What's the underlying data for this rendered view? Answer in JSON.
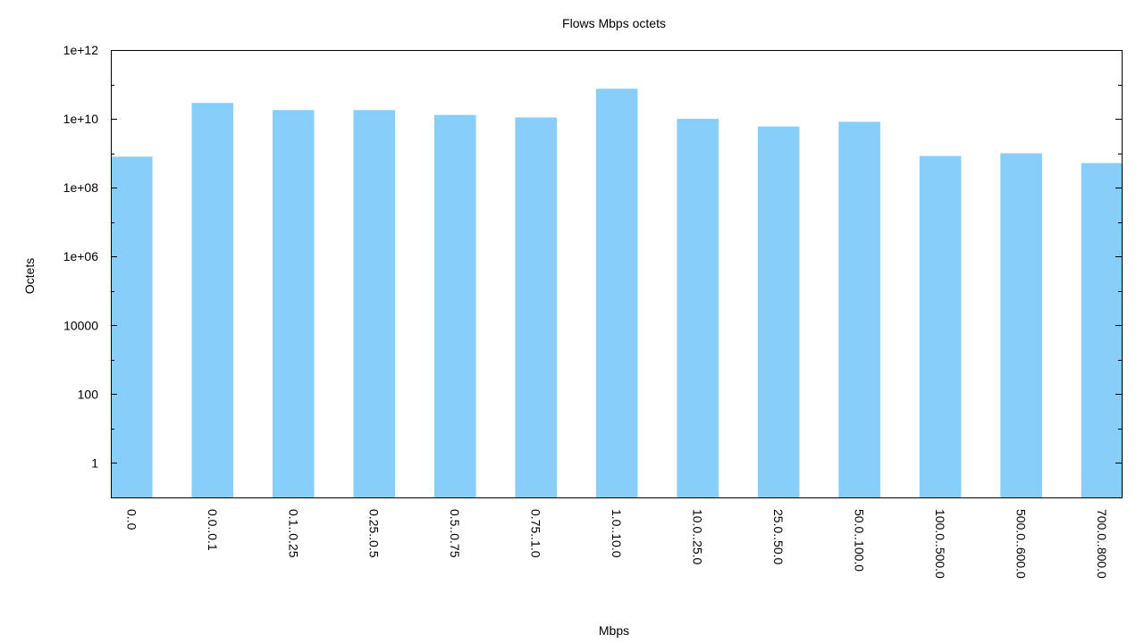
{
  "chart_data": {
    "type": "bar",
    "title": "Flows Mbps octets",
    "xlabel": "Mbps",
    "ylabel": "Octets",
    "y_scale": "log",
    "ylim": [
      0.1,
      1000000000000
    ],
    "y_ticks": [
      {
        "value": 1,
        "label": "1"
      },
      {
        "value": 100,
        "label": "100"
      },
      {
        "value": 10000,
        "label": "10000"
      },
      {
        "value": 1000000,
        "label": "1e+06"
      },
      {
        "value": 100000000,
        "label": "1e+08"
      },
      {
        "value": 10000000000,
        "label": "1e+10"
      },
      {
        "value": 1000000000000,
        "label": "1e+12"
      }
    ],
    "categories": [
      "0..0",
      "0.0..0.1",
      "0.1..0.25",
      "0.25..0.5",
      "0.5..0.75",
      "0.75..1.0",
      "1.0..10.0",
      "10.0..25.0",
      "25.0..50.0",
      "50.0..100.0",
      "100.0..500.0",
      "500.0..600.0",
      "700.0..800.0"
    ],
    "values": [
      800000000,
      29000000000,
      18000000000,
      18000000000,
      13000000000,
      11000000000,
      75000000000,
      10000000000,
      6000000000,
      8200000000,
      830000000,
      1000000000,
      520000000
    ],
    "bar_color": "#87cefa",
    "grid": false,
    "legend": "none"
  }
}
